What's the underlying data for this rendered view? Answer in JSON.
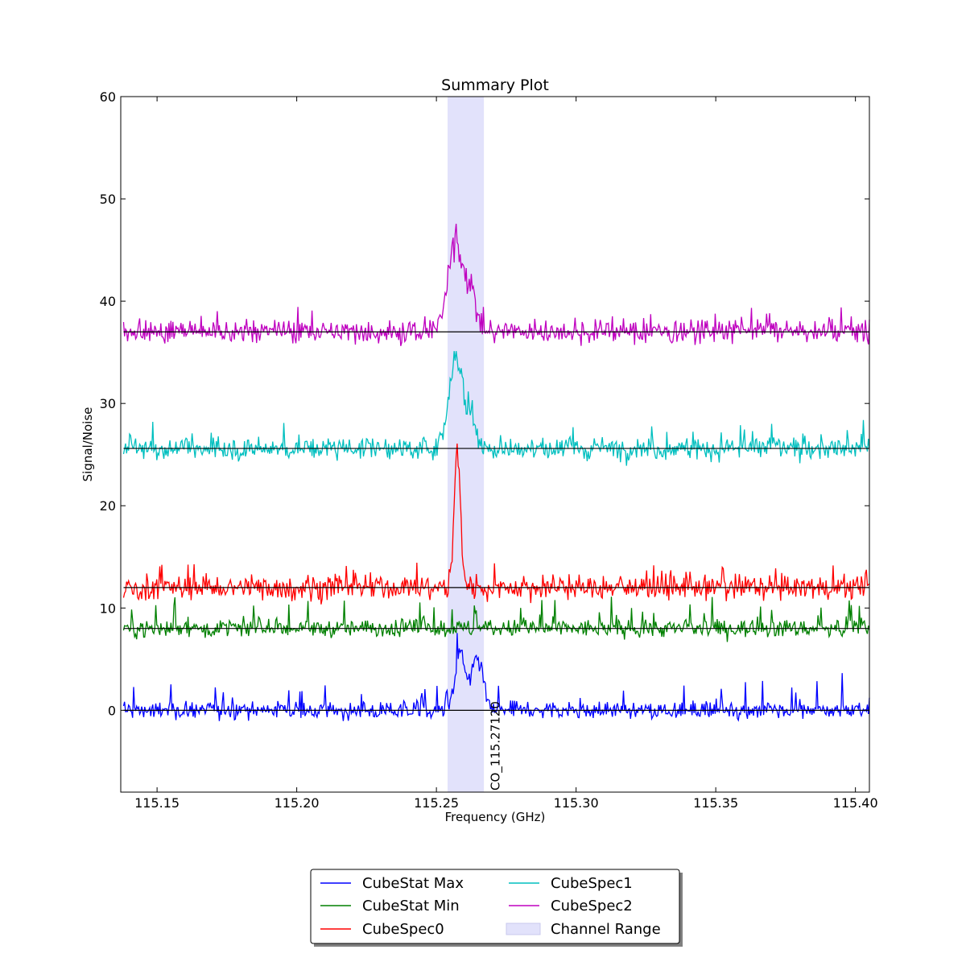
{
  "chart_data": {
    "type": "line",
    "title": "Summary Plot",
    "xlabel": "Frequency (GHz)",
    "ylabel": "Signal/Noise",
    "xlim": [
      115.137,
      115.405
    ],
    "ylim": [
      -8,
      60
    ],
    "xticks": [
      115.15,
      115.2,
      115.25,
      115.3,
      115.35,
      115.4
    ],
    "xtick_labels": [
      "115.15",
      "115.20",
      "115.25",
      "115.30",
      "115.35",
      "115.40"
    ],
    "yticks": [
      0,
      10,
      20,
      30,
      40,
      50,
      60
    ],
    "ytick_labels": [
      "0",
      "10",
      "20",
      "30",
      "40",
      "50",
      "60"
    ],
    "grid": false,
    "legend_position": "bottom-center",
    "channel_range": {
      "name": "Channel Range",
      "x_start": 115.254,
      "x_end": 115.267,
      "color": "#e0e0f8"
    },
    "line_annotation": {
      "label": "CO_115.27120",
      "x": 115.2712
    },
    "series": [
      {
        "name": "CubeStat Max",
        "color": "#0000ff",
        "baseline": 0,
        "noise": 0.75,
        "spike_prob": 0.06,
        "spike_amp": 3.2,
        "peaks": [
          {
            "x": 115.2585,
            "amp": 5.5,
            "w": 0.0018
          },
          {
            "x": 115.2648,
            "amp": 5.0,
            "w": 0.002
          }
        ]
      },
      {
        "name": "CubeStat Min",
        "color": "#008000",
        "baseline": 8,
        "noise": 0.75,
        "spike_prob": 0.07,
        "spike_amp": 3.0,
        "peaks": []
      },
      {
        "name": "CubeSpec0",
        "color": "#ff0000",
        "baseline": 12,
        "noise": 1.1,
        "spike_prob": 0.05,
        "spike_amp": 2.2,
        "peaks": [
          {
            "x": 115.2575,
            "amp": 12.0,
            "w": 0.0012
          }
        ]
      },
      {
        "name": "CubeSpec1",
        "color": "#00bfbf",
        "baseline": 25.6,
        "noise": 1.0,
        "spike_prob": 0.04,
        "spike_amp": 2.5,
        "peaks": [
          {
            "x": 115.257,
            "amp": 9.0,
            "w": 0.0025
          },
          {
            "x": 115.2625,
            "amp": 3.0,
            "w": 0.0015
          }
        ]
      },
      {
        "name": "CubeSpec2",
        "color": "#bf00bf",
        "baseline": 37,
        "noise": 1.0,
        "spike_prob": 0.04,
        "spike_amp": 2.5,
        "peaks": [
          {
            "x": 115.257,
            "amp": 9.0,
            "w": 0.0028
          },
          {
            "x": 115.2625,
            "amp": 3.5,
            "w": 0.0015
          }
        ]
      }
    ]
  }
}
